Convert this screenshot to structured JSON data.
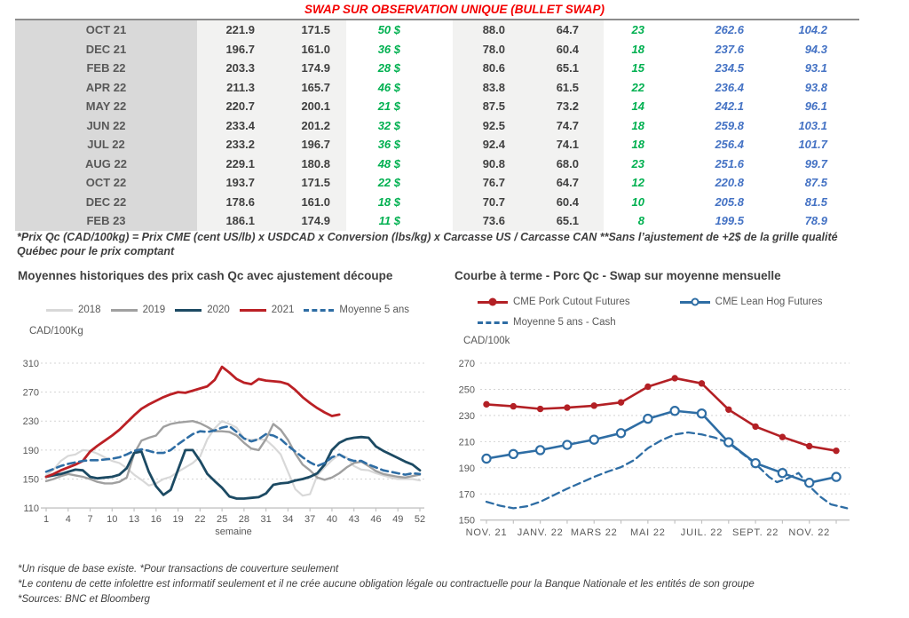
{
  "title": "SWAP SUR OBSERVATION UNIQUE (BULLET SWAP)",
  "table": {
    "rows": [
      [
        "OCT 21",
        "221.9",
        "171.5",
        "50 $",
        "88.0",
        "64.7",
        "23",
        "262.6",
        "104.2"
      ],
      [
        "DEC 21",
        "196.7",
        "161.0",
        "36 $",
        "78.0",
        "60.4",
        "18",
        "237.6",
        "94.3"
      ],
      [
        "FEB 22",
        "203.3",
        "174.9",
        "28 $",
        "80.6",
        "65.1",
        "15",
        "234.5",
        "93.1"
      ],
      [
        "APR 22",
        "211.3",
        "165.7",
        "46 $",
        "83.8",
        "61.5",
        "22",
        "236.4",
        "93.8"
      ],
      [
        "MAY 22",
        "220.7",
        "200.1",
        "21 $",
        "87.5",
        "73.2",
        "14",
        "242.1",
        "96.1"
      ],
      [
        "JUN 22",
        "233.4",
        "201.2",
        "32 $",
        "92.5",
        "74.7",
        "18",
        "259.8",
        "103.1"
      ],
      [
        "JUL 22",
        "233.2",
        "196.7",
        "36 $",
        "92.4",
        "74.1",
        "18",
        "256.4",
        "101.7"
      ],
      [
        "AUG 22",
        "229.1",
        "180.8",
        "48 $",
        "90.8",
        "68.0",
        "23",
        "251.6",
        "99.7"
      ],
      [
        "OCT 22",
        "193.7",
        "171.5",
        "22 $",
        "76.7",
        "64.7",
        "12",
        "220.8",
        "87.5"
      ],
      [
        "DEC 22",
        "178.6",
        "161.0",
        "18 $",
        "70.7",
        "60.4",
        "10",
        "205.8",
        "81.5"
      ],
      [
        "FEB 23",
        "186.1",
        "174.9",
        "11 $",
        "73.6",
        "65.1",
        "8",
        "199.5",
        "78.9"
      ]
    ]
  },
  "table_footnote_line1": "*Prix Qc (CAD/100kg) = Prix CME (cent US/lb) x USDCAD x Conversion (lbs/kg) x Carcasse US / Carcasse CAN **Sans l’ajustement de +2$ de la grille qualité",
  "table_footnote_line2": "Québec pour le prix comptant",
  "chart_data": [
    {
      "type": "line",
      "title": "Moyennes historiques des prix cash Qc avec ajustement découpe",
      "ylabel": "CAD/100Kg",
      "xlabel": "semaine",
      "ylim": [
        110,
        310
      ],
      "yticks": [
        110,
        150,
        190,
        230,
        270,
        310
      ],
      "xticks": [
        1,
        4,
        7,
        10,
        13,
        16,
        19,
        22,
        25,
        28,
        31,
        34,
        37,
        40,
        43,
        46,
        49,
        52
      ],
      "grid": "dotted-horizontal",
      "legend_position": "top",
      "series": [
        {
          "name": "2018",
          "color": "#d8d8d8",
          "style": "solid",
          "width": 2.2,
          "values": [
            155,
            163,
            175,
            182,
            184,
            190,
            189,
            185,
            180,
            175,
            172,
            165,
            156,
            149,
            141,
            144,
            150,
            153,
            160,
            166,
            172,
            181,
            205,
            220,
            230,
            226,
            221,
            206,
            204,
            205,
            204,
            195,
            184,
            160,
            136,
            127,
            129,
            155,
            166,
            176,
            184,
            180,
            168,
            163,
            162,
            158,
            155,
            152,
            150,
            150,
            150,
            148
          ]
        },
        {
          "name": "2019",
          "color": "#a0a0a0",
          "style": "solid",
          "width": 2.4,
          "values": [
            147,
            150,
            154,
            157,
            155,
            153,
            150,
            146,
            144,
            144,
            146,
            152,
            185,
            203,
            207,
            210,
            222,
            226,
            228,
            229,
            230,
            227,
            222,
            216,
            216,
            215,
            210,
            200,
            192,
            190,
            205,
            226,
            218,
            204,
            185,
            170,
            162,
            152,
            149,
            152,
            158,
            166,
            172,
            174,
            168,
            161,
            157,
            155,
            153,
            152,
            154,
            156
          ]
        },
        {
          "name": "2020",
          "color": "#1c4a63",
          "style": "solid",
          "width": 2.8,
          "values": [
            153,
            155,
            157,
            160,
            163,
            162,
            153,
            151,
            152,
            153,
            156,
            165,
            186,
            188,
            160,
            140,
            128,
            135,
            163,
            190,
            190,
            175,
            157,
            147,
            138,
            126,
            123,
            123,
            124,
            125,
            130,
            142,
            144,
            145,
            148,
            150,
            153,
            158,
            170,
            190,
            200,
            205,
            207,
            208,
            207,
            195,
            189,
            184,
            179,
            174,
            170,
            162
          ]
        },
        {
          "name": "2021",
          "color": "#bb2025",
          "style": "solid",
          "width": 2.8,
          "values": [
            153,
            157,
            162,
            166,
            170,
            175,
            188,
            196,
            203,
            210,
            218,
            228,
            238,
            247,
            253,
            258,
            263,
            267,
            270,
            269,
            272,
            275,
            278,
            287,
            305,
            297,
            288,
            283,
            281,
            288,
            286,
            285,
            284,
            281,
            273,
            263,
            255,
            248,
            242,
            237,
            239
          ]
        },
        {
          "name": "Moyenne 5 ans",
          "color": "#2e6da4",
          "style": "dashed",
          "width": 2.6,
          "values": [
            160,
            164,
            168,
            171,
            173,
            175,
            176,
            176,
            177,
            178,
            180,
            184,
            189,
            191,
            189,
            186,
            186,
            190,
            198,
            205,
            212,
            216,
            215,
            217,
            221,
            223,
            215,
            206,
            202,
            205,
            212,
            210,
            205,
            196,
            188,
            180,
            173,
            168,
            172,
            180,
            184,
            178,
            175,
            175,
            170,
            166,
            162,
            160,
            158,
            156,
            158,
            157
          ]
        }
      ]
    },
    {
      "type": "line",
      "title": "Courbe à terme - Porc Qc - Swap sur moyenne mensuelle",
      "ylabel": "CAD/100k",
      "ylim": [
        150,
        270
      ],
      "yticks": [
        150,
        170,
        190,
        210,
        230,
        250,
        270
      ],
      "n_points": 14,
      "x_labels": [
        "NOV. 21",
        "JANV. 22",
        "MARS 22",
        "MAI 22",
        "JUIL. 22",
        "SEPT. 22",
        "NOV. 22"
      ],
      "x_label_positions": [
        0,
        2,
        4,
        6,
        8,
        10,
        12
      ],
      "grid": "dotted-horizontal",
      "legend_position": "top",
      "series": [
        {
          "name": "CME Pork Cutout Futures",
          "color": "#b32025",
          "style": "solid",
          "width": 2.6,
          "marker": "filled-circle",
          "values": [
            238.5,
            237,
            235,
            236,
            237.5,
            240,
            252,
            258.5,
            254.5,
            234.5,
            221.5,
            213.5,
            206.5,
            203
          ]
        },
        {
          "name": "CME Lean Hog Futures",
          "color": "#2e6da4",
          "style": "solid",
          "width": 2.6,
          "marker": "open-circle",
          "values": [
            197,
            200.5,
            203.5,
            207.5,
            211.5,
            216.5,
            227.5,
            233.5,
            231.5,
            209.5,
            193.5,
            186,
            178.5,
            183
          ]
        },
        {
          "name": "Moyenne 5 ans - Cash",
          "color": "#2e6da4",
          "style": "dashed",
          "width": 2.3,
          "points": [
            [
              0,
              164
            ],
            [
              0.5,
              161
            ],
            [
              1,
              159
            ],
            [
              1.5,
              160.5
            ],
            [
              2,
              164
            ],
            [
              2.5,
              169
            ],
            [
              3,
              174
            ],
            [
              3.5,
              178.5
            ],
            [
              4,
              183
            ],
            [
              4.5,
              187
            ],
            [
              5,
              190.5
            ],
            [
              5.5,
              196
            ],
            [
              6,
              205
            ],
            [
              6.5,
              211
            ],
            [
              7,
              215.5
            ],
            [
              7.5,
              217
            ],
            [
              8,
              215.5
            ],
            [
              8.5,
              213
            ],
            [
              9,
              209
            ],
            [
              9.5,
              201
            ],
            [
              10,
              193
            ],
            [
              10.5,
              183
            ],
            [
              10.8,
              179
            ],
            [
              11.2,
              182
            ],
            [
              11.6,
              186
            ],
            [
              12,
              176
            ],
            [
              12.4,
              168
            ],
            [
              12.8,
              162
            ],
            [
              13.4,
              159
            ]
          ]
        }
      ]
    }
  ],
  "footnotes": [
    "*Un risque de base existe. *Pour transactions de couverture seulement",
    "*Le contenu de cette infolettre est informatif seulement et il ne crée aucune obligation légale ou contractuelle pour la Banque Nationale et les entités de son groupe",
    "*Sources: BNC et Bloomberg"
  ]
}
